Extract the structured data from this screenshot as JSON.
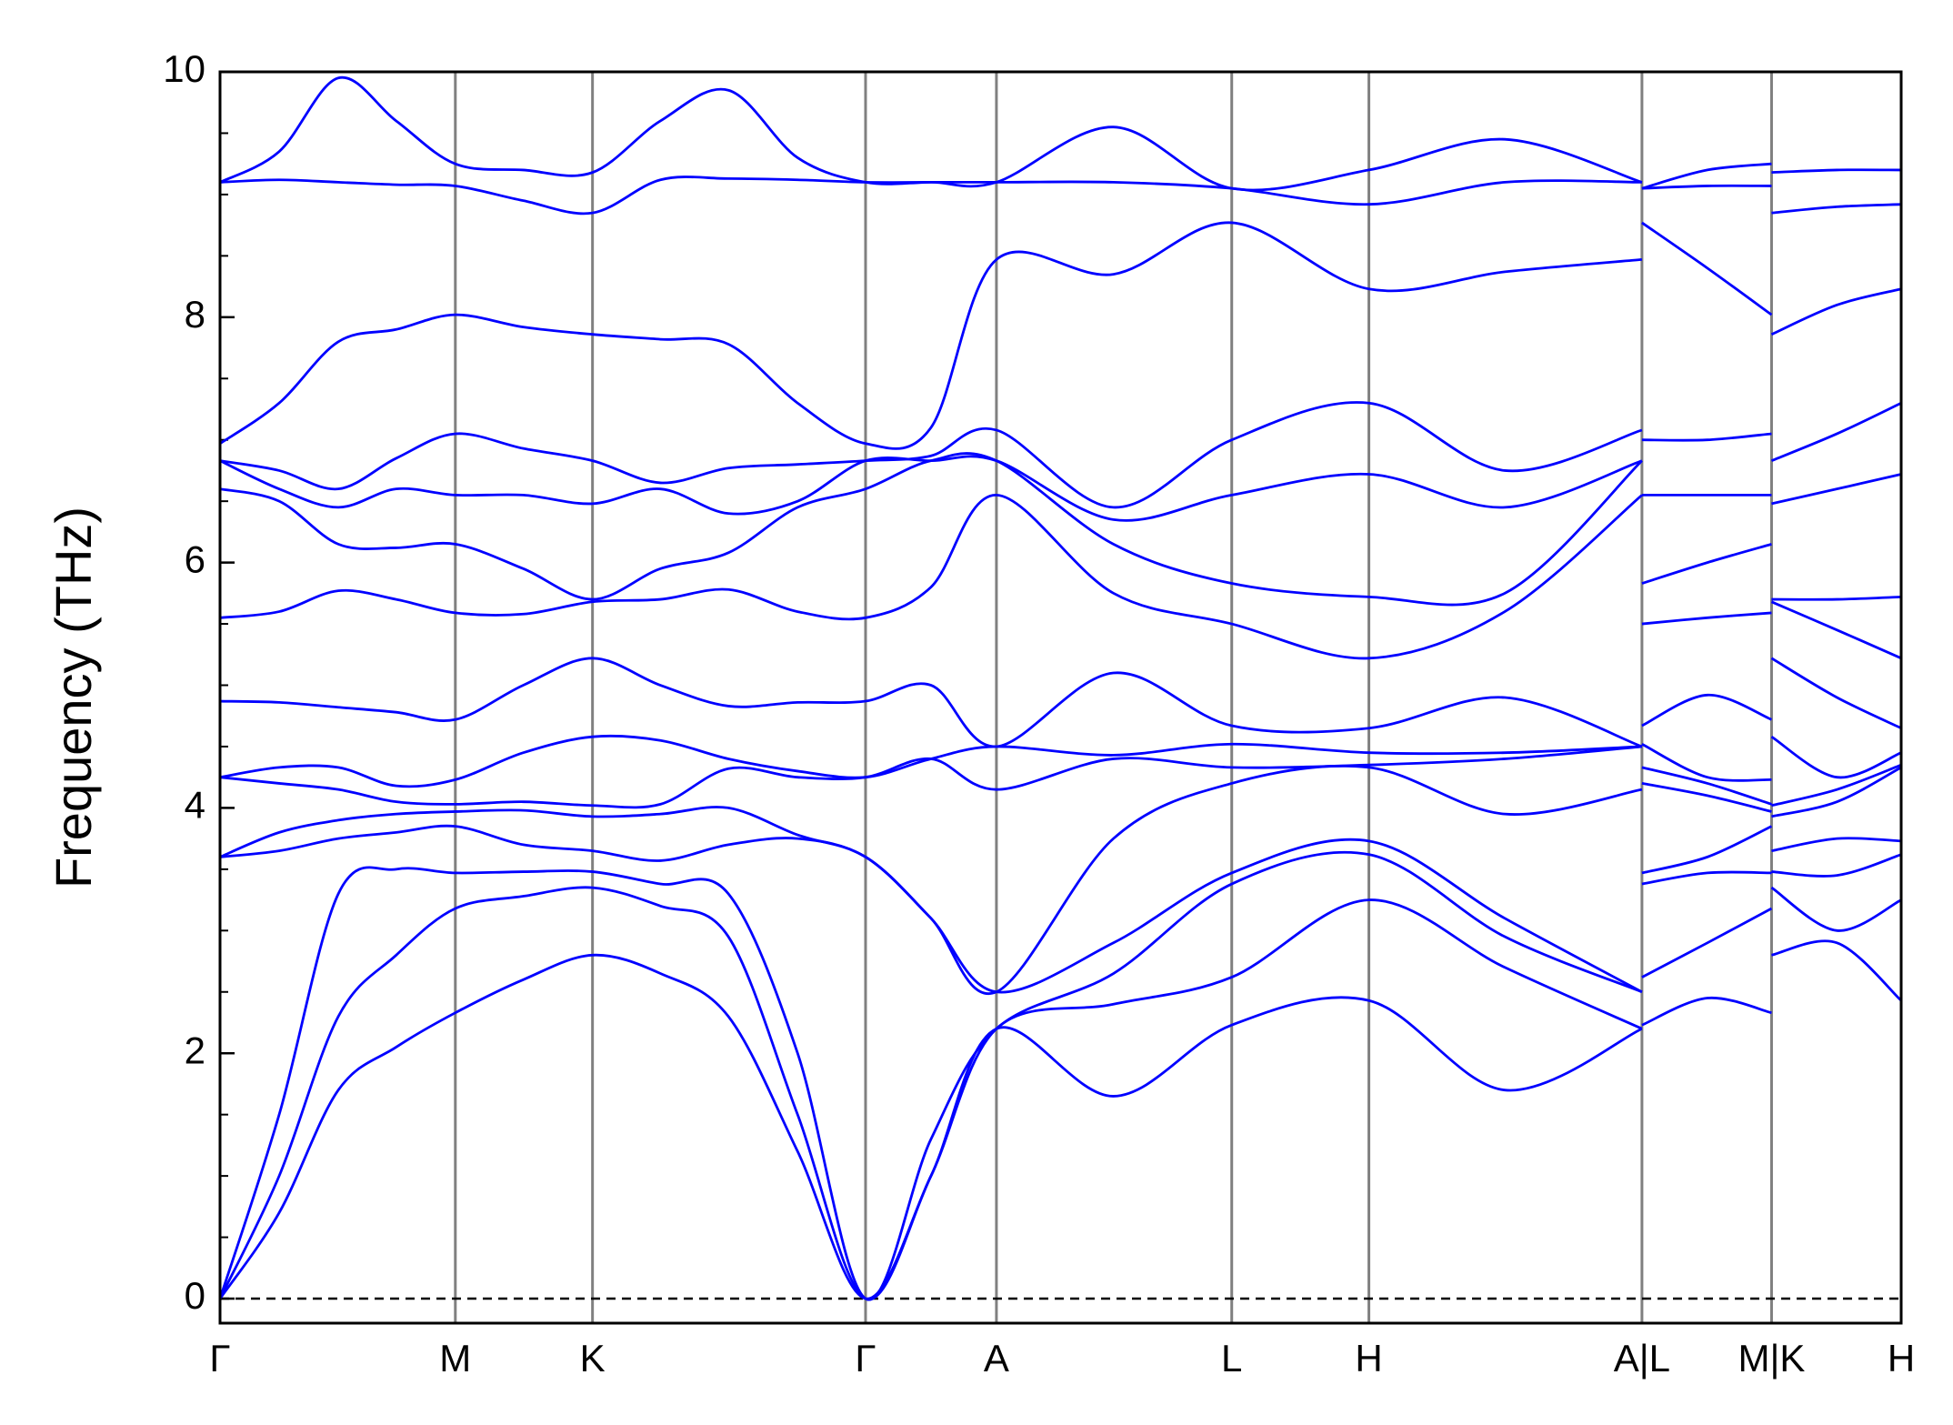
{
  "chart_data": {
    "type": "band",
    "ylabel": "Frequency (THz)",
    "color": "#0000ff",
    "xlim": [
      0,
      1336
    ],
    "ylim": [
      -0.2,
      10
    ],
    "yticks": [
      0,
      2,
      4,
      6,
      8,
      10
    ],
    "yminor_step": 0.5,
    "xticks": [
      {
        "value": 0,
        "label": "Γ"
      },
      {
        "value": 187,
        "label": "M"
      },
      {
        "value": 296,
        "label": "K"
      },
      {
        "value": 513,
        "label": "Γ"
      },
      {
        "value": 617,
        "label": "A"
      },
      {
        "value": 804,
        "label": "L"
      },
      {
        "value": 913,
        "label": "H"
      },
      {
        "value": 1130,
        "label": "A|L"
      },
      {
        "value": 1233,
        "label": "M|K"
      },
      {
        "value": 1336,
        "label": "H"
      }
    ],
    "vline_color": "#808080",
    "zero_line": 0,
    "x": [
      0,
      47,
      94,
      140,
      187,
      241,
      296,
      350,
      404,
      459,
      513,
      565,
      617,
      710,
      804,
      913,
      1021,
      1130,
      1130,
      1130,
      1182,
      1233,
      1233,
      1233,
      1285,
      1336
    ],
    "series": [
      {
        "values": [
          0,
          0.7,
          1.7,
          2.05,
          2.33,
          2.6,
          2.8,
          2.65,
          2.3,
          1.2,
          0,
          1.0,
          2.2,
          1.65,
          2.23,
          2.43,
          1.7,
          2.2,
          null,
          2.23,
          2.45,
          2.33,
          null,
          2.8,
          2.9,
          2.43
        ]
      },
      {
        "values": [
          0,
          1.0,
          2.3,
          2.8,
          3.18,
          3.28,
          3.35,
          3.2,
          2.95,
          1.5,
          0,
          1.0,
          2.2,
          2.4,
          2.62,
          3.25,
          2.7,
          2.2,
          null,
          2.62,
          2.9,
          3.18,
          null,
          3.35,
          3.0,
          3.25
        ]
      },
      {
        "values": [
          0,
          1.5,
          3.3,
          3.5,
          3.47,
          3.48,
          3.48,
          3.38,
          3.3,
          2.0,
          0,
          1.3,
          2.2,
          2.65,
          3.38,
          3.62,
          2.95,
          2.5,
          null,
          3.38,
          3.47,
          3.47,
          null,
          3.48,
          3.45,
          3.62
        ]
      },
      {
        "values": [
          3.6,
          3.65,
          3.75,
          3.8,
          3.85,
          3.7,
          3.65,
          3.57,
          3.7,
          3.75,
          3.6,
          3.1,
          2.5,
          2.9,
          3.47,
          3.73,
          3.1,
          2.5,
          null,
          3.47,
          3.6,
          3.85,
          null,
          3.65,
          3.75,
          3.73
        ]
      },
      {
        "values": [
          3.6,
          3.8,
          3.9,
          3.95,
          3.97,
          3.98,
          3.93,
          3.95,
          4.0,
          3.78,
          3.6,
          3.1,
          2.5,
          3.75,
          4.2,
          4.33,
          3.95,
          4.15,
          null,
          4.2,
          4.1,
          3.97,
          null,
          3.93,
          4.05,
          4.33
        ]
      },
      {
        "values": [
          4.25,
          4.2,
          4.15,
          4.05,
          4.03,
          4.05,
          4.02,
          4.03,
          4.32,
          4.25,
          4.25,
          4.4,
          4.15,
          4.4,
          4.33,
          4.35,
          4.4,
          4.5,
          null,
          4.33,
          4.2,
          4.03,
          null,
          4.02,
          4.15,
          4.35
        ]
      },
      {
        "values": [
          4.25,
          4.33,
          4.33,
          4.18,
          4.23,
          4.45,
          4.58,
          4.55,
          4.4,
          4.3,
          4.25,
          4.4,
          4.5,
          4.43,
          4.52,
          4.45,
          4.45,
          4.5,
          null,
          4.52,
          4.25,
          4.23,
          null,
          4.58,
          4.25,
          4.45
        ]
      },
      {
        "values": [
          4.87,
          4.86,
          4.82,
          4.78,
          4.72,
          5.0,
          5.22,
          5.0,
          4.83,
          4.86,
          4.87,
          5.0,
          4.5,
          5.1,
          4.67,
          4.65,
          4.9,
          4.5,
          null,
          4.67,
          4.92,
          4.72,
          null,
          5.22,
          4.9,
          4.65
        ]
      },
      {
        "values": [
          5.55,
          5.6,
          5.77,
          5.7,
          5.59,
          5.58,
          5.68,
          5.7,
          5.78,
          5.6,
          5.55,
          5.8,
          6.55,
          5.75,
          5.5,
          5.22,
          5.6,
          6.55,
          null,
          5.5,
          5.55,
          5.59,
          null,
          5.68,
          5.45,
          5.22
        ]
      },
      {
        "values": [
          6.6,
          6.5,
          6.15,
          6.12,
          6.15,
          5.95,
          5.7,
          5.95,
          6.08,
          6.45,
          6.6,
          6.83,
          6.83,
          6.15,
          5.83,
          5.72,
          5.75,
          6.83,
          null,
          5.83,
          6.0,
          6.15,
          null,
          5.7,
          5.7,
          5.72
        ]
      },
      {
        "values": [
          6.83,
          6.6,
          6.45,
          6.6,
          6.55,
          6.55,
          6.48,
          6.6,
          6.4,
          6.5,
          6.83,
          6.83,
          6.83,
          6.35,
          6.55,
          6.72,
          6.45,
          6.83,
          null,
          6.55,
          6.55,
          6.55,
          null,
          6.48,
          6.6,
          6.72
        ]
      },
      {
        "values": [
          6.83,
          6.75,
          6.6,
          6.85,
          7.05,
          6.93,
          6.83,
          6.65,
          6.77,
          6.8,
          6.83,
          6.87,
          7.08,
          6.45,
          7.0,
          7.3,
          6.75,
          7.08,
          null,
          7.0,
          7.0,
          7.05,
          null,
          6.83,
          7.05,
          7.3
        ]
      },
      {
        "values": [
          6.97,
          7.3,
          7.8,
          7.9,
          8.02,
          7.92,
          7.86,
          7.82,
          7.78,
          7.3,
          6.97,
          7.1,
          8.47,
          8.35,
          8.77,
          8.23,
          8.37,
          8.47,
          null,
          8.77,
          8.4,
          8.02,
          null,
          7.86,
          8.1,
          8.23
        ]
      },
      {
        "values": [
          9.1,
          9.12,
          9.1,
          9.08,
          9.07,
          8.95,
          8.85,
          9.12,
          9.13,
          9.12,
          9.1,
          9.1,
          9.1,
          9.1,
          9.05,
          8.92,
          9.1,
          9.1,
          null,
          9.05,
          9.07,
          9.07,
          null,
          8.85,
          8.9,
          8.92
        ]
      },
      {
        "values": [
          9.1,
          9.35,
          9.95,
          9.6,
          9.25,
          9.2,
          9.18,
          9.6,
          9.85,
          9.3,
          9.1,
          9.1,
          9.1,
          9.55,
          9.05,
          9.2,
          9.45,
          9.1,
          null,
          9.05,
          9.2,
          9.25,
          null,
          9.18,
          9.2,
          9.2
        ]
      }
    ]
  }
}
